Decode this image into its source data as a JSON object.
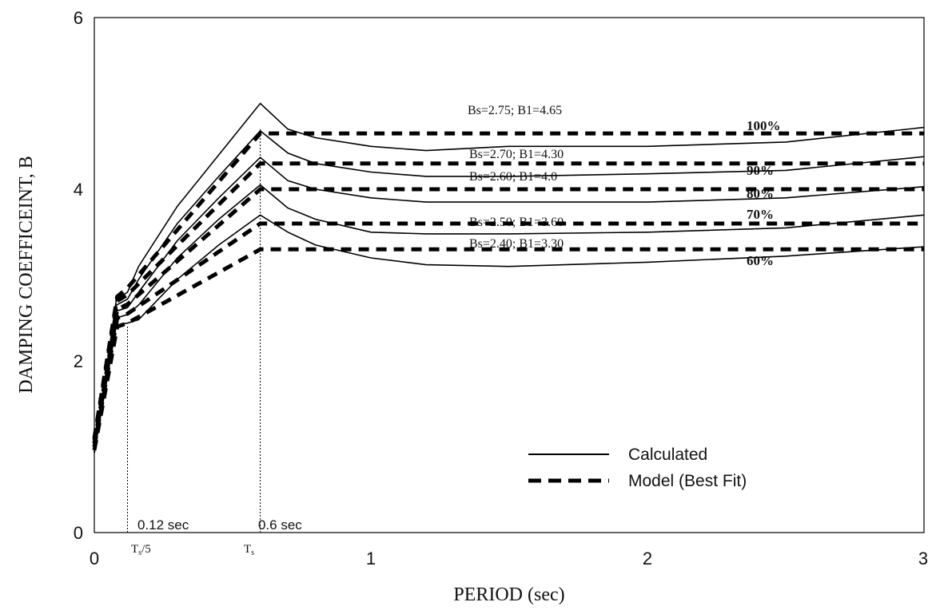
{
  "chart_data": {
    "type": "line",
    "xlabel": "PERIOD (sec)",
    "ylabel": "DAMPING COEFFICEINT,  B",
    "xlim": [
      0,
      3
    ],
    "ylim": [
      0,
      6
    ],
    "x_ticks": [
      "0",
      "1",
      "2",
      "3"
    ],
    "y_ticks": [
      "0",
      "2",
      "4",
      "6"
    ],
    "grid": false,
    "legend": {
      "position": "bottom-right",
      "entries": [
        {
          "label": "Calculated",
          "style": "solid"
        },
        {
          "label": "Model (Best Fit)",
          "style": "dashed"
        }
      ]
    },
    "reference_lines": [
      {
        "x": 0.12,
        "label": "0.12 sec",
        "sub_main": "T",
        "sub_sub": "s",
        "sub_rest": "/5"
      },
      {
        "x": 0.6,
        "label": "0.6 sec",
        "sub_main": "T",
        "sub_sub": "s",
        "sub_rest": ""
      }
    ],
    "curve_labels": [
      "100%",
      "90%",
      "80%",
      "70%",
      "60%"
    ],
    "annotations": [
      "Bs=2.75; B1=4.65",
      "Bs=2.70; B1=4.30",
      "Bs=2.60; B1=4.0",
      "Bs=2.50; B1=3.60",
      "Bs=2.40; B1=3.30"
    ],
    "series_calculated": [
      {
        "points": [
          [
            0,
            0.93
          ],
          [
            0.08,
            2.72
          ],
          [
            0.12,
            2.8
          ],
          [
            0.16,
            3.1
          ],
          [
            0.3,
            3.8
          ],
          [
            0.45,
            4.4
          ],
          [
            0.6,
            5.0
          ],
          [
            0.7,
            4.7
          ],
          [
            0.8,
            4.6
          ],
          [
            1.0,
            4.5
          ],
          [
            1.2,
            4.45
          ],
          [
            1.5,
            4.5
          ],
          [
            2.0,
            4.5
          ],
          [
            2.5,
            4.55
          ],
          [
            3.0,
            4.72
          ]
        ]
      },
      {
        "points": [
          [
            0,
            0.93
          ],
          [
            0.08,
            2.65
          ],
          [
            0.12,
            2.72
          ],
          [
            0.16,
            2.95
          ],
          [
            0.3,
            3.6
          ],
          [
            0.45,
            4.15
          ],
          [
            0.6,
            4.68
          ],
          [
            0.7,
            4.42
          ],
          [
            0.8,
            4.3
          ],
          [
            1.0,
            4.2
          ],
          [
            1.2,
            4.15
          ],
          [
            1.5,
            4.15
          ],
          [
            2.0,
            4.18
          ],
          [
            2.5,
            4.22
          ],
          [
            3.0,
            4.38
          ]
        ]
      },
      {
        "points": [
          [
            0,
            0.93
          ],
          [
            0.08,
            2.58
          ],
          [
            0.12,
            2.62
          ],
          [
            0.16,
            2.8
          ],
          [
            0.3,
            3.4
          ],
          [
            0.45,
            3.9
          ],
          [
            0.6,
            4.37
          ],
          [
            0.7,
            4.1
          ],
          [
            0.8,
            4.0
          ],
          [
            1.0,
            3.9
          ],
          [
            1.2,
            3.85
          ],
          [
            1.5,
            3.85
          ],
          [
            2.0,
            3.85
          ],
          [
            2.5,
            3.9
          ],
          [
            3.0,
            4.03
          ]
        ]
      },
      {
        "points": [
          [
            0,
            0.93
          ],
          [
            0.08,
            2.5
          ],
          [
            0.12,
            2.54
          ],
          [
            0.16,
            2.65
          ],
          [
            0.3,
            3.2
          ],
          [
            0.45,
            3.65
          ],
          [
            0.6,
            4.05
          ],
          [
            0.7,
            3.78
          ],
          [
            0.8,
            3.65
          ],
          [
            1.0,
            3.5
          ],
          [
            1.2,
            3.48
          ],
          [
            1.5,
            3.48
          ],
          [
            2.0,
            3.5
          ],
          [
            2.5,
            3.55
          ],
          [
            3.0,
            3.7
          ]
        ]
      },
      {
        "points": [
          [
            0,
            0.93
          ],
          [
            0.08,
            2.42
          ],
          [
            0.12,
            2.44
          ],
          [
            0.16,
            2.48
          ],
          [
            0.3,
            2.95
          ],
          [
            0.45,
            3.35
          ],
          [
            0.6,
            3.7
          ],
          [
            0.7,
            3.5
          ],
          [
            0.8,
            3.35
          ],
          [
            1.0,
            3.2
          ],
          [
            1.2,
            3.12
          ],
          [
            1.5,
            3.1
          ],
          [
            2.0,
            3.15
          ],
          [
            2.5,
            3.22
          ],
          [
            3.0,
            3.33
          ]
        ]
      }
    ],
    "series_model": [
      {
        "points": [
          [
            0,
            1.1
          ],
          [
            0.083,
            2.75
          ],
          [
            0.12,
            2.85
          ],
          [
            0.6,
            4.65
          ],
          [
            3.0,
            4.65
          ]
        ]
      },
      {
        "points": [
          [
            0,
            1.08
          ],
          [
            0.083,
            2.7
          ],
          [
            0.12,
            2.77
          ],
          [
            0.6,
            4.3
          ],
          [
            3.0,
            4.3
          ]
        ]
      },
      {
        "points": [
          [
            0,
            1.04
          ],
          [
            0.083,
            2.6
          ],
          [
            0.12,
            2.66
          ],
          [
            0.6,
            4.0
          ],
          [
            3.0,
            4.0
          ]
        ]
      },
      {
        "points": [
          [
            0,
            1.0
          ],
          [
            0.083,
            2.5
          ],
          [
            0.12,
            2.55
          ],
          [
            0.6,
            3.6
          ],
          [
            3.0,
            3.6
          ]
        ]
      },
      {
        "points": [
          [
            0,
            0.96
          ],
          [
            0.083,
            2.4
          ],
          [
            0.12,
            2.44
          ],
          [
            0.6,
            3.3
          ],
          [
            3.0,
            3.3
          ]
        ]
      }
    ]
  }
}
